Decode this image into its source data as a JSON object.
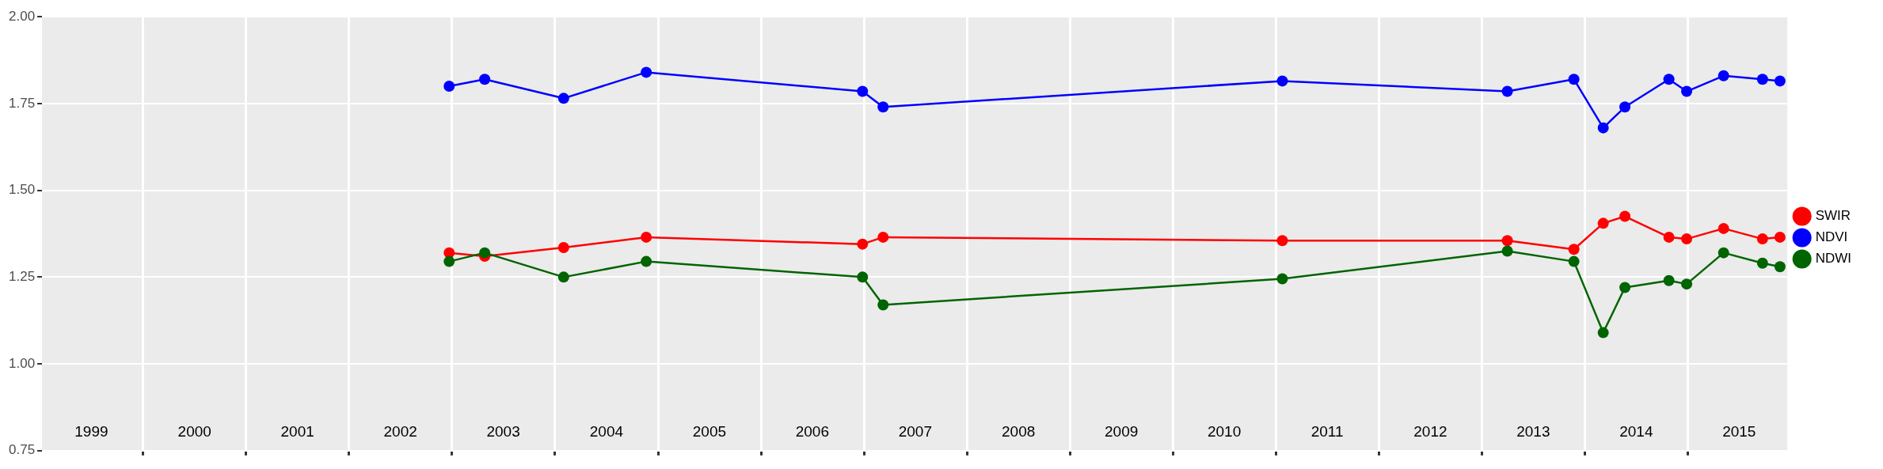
{
  "chart_data": {
    "type": "line",
    "marker": "circle",
    "line_style": "solid",
    "legend": "right",
    "grid": true,
    "x": [
      "2002-12-22",
      "2003-04-27",
      "2004-02-01",
      "2004-11-20",
      "2006-12-27",
      "2007-03-10",
      "2011-01-24",
      "2013-04-01",
      "2013-11-23",
      "2014-03-07",
      "2014-05-23",
      "2014-10-26",
      "2014-12-28",
      "2015-05-08",
      "2015-09-23",
      "2015-11-24"
    ],
    "series": [
      {
        "name": "SWIR",
        "color": "#ff0000",
        "values": [
          1.32,
          1.31,
          1.335,
          1.365,
          1.345,
          1.365,
          1.355,
          1.355,
          1.33,
          1.405,
          1.425,
          1.365,
          1.36,
          1.39,
          1.36,
          1.365
        ]
      },
      {
        "name": "NDVI",
        "color": "#0000ff",
        "values": [
          1.8,
          1.82,
          1.765,
          1.84,
          1.785,
          1.74,
          1.815,
          1.785,
          1.82,
          1.68,
          1.74,
          1.82,
          1.785,
          1.83,
          1.82,
          1.815
        ]
      },
      {
        "name": "NDWI",
        "color": "#006400",
        "values": [
          1.295,
          1.32,
          1.25,
          1.295,
          1.25,
          1.17,
          1.245,
          1.325,
          1.295,
          1.09,
          1.22,
          1.24,
          1.23,
          1.32,
          1.29,
          1.28
        ]
      }
    ],
    "xlim": [
      "1999-01-08",
      "2015-12-20"
    ],
    "xticks": [
      {
        "value": "2000-01-01",
        "label": null
      },
      {
        "value": "2001-01-01",
        "label": null
      },
      {
        "value": "2002-01-01",
        "label": null
      },
      {
        "value": "2003-01-01",
        "label": null
      },
      {
        "value": "2004-01-01",
        "label": null
      },
      {
        "value": "2005-01-01",
        "label": null
      },
      {
        "value": "2006-01-01",
        "label": null
      },
      {
        "value": "2007-01-01",
        "label": null
      },
      {
        "value": "2008-01-01",
        "label": null
      },
      {
        "value": "2009-01-01",
        "label": null
      },
      {
        "value": "2010-01-01",
        "label": null
      },
      {
        "value": "2011-01-01",
        "label": null
      },
      {
        "value": "2012-01-01",
        "label": null
      },
      {
        "value": "2013-01-01",
        "label": null
      },
      {
        "value": "2014-01-01",
        "label": null
      },
      {
        "value": "2015-01-01",
        "label": null
      },
      {
        "value": "1999-07-02",
        "label": "1999"
      },
      {
        "value": "2000-07-02",
        "label": "2000"
      },
      {
        "value": "2001-07-02",
        "label": "2001"
      },
      {
        "value": "2002-07-02",
        "label": "2002"
      },
      {
        "value": "2003-07-02",
        "label": "2003"
      },
      {
        "value": "2004-07-02",
        "label": "2004"
      },
      {
        "value": "2005-07-02",
        "label": "2005"
      },
      {
        "value": "2006-07-02",
        "label": "2006"
      },
      {
        "value": "2007-07-02",
        "label": "2007"
      },
      {
        "value": "2008-07-02",
        "label": "2008"
      },
      {
        "value": "2009-07-02",
        "label": "2009"
      },
      {
        "value": "2010-07-02",
        "label": "2010"
      },
      {
        "value": "2011-07-02",
        "label": "2011"
      },
      {
        "value": "2012-07-02",
        "label": "2012"
      },
      {
        "value": "2013-07-02",
        "label": "2013"
      },
      {
        "value": "2014-07-02",
        "label": "2014"
      },
      {
        "value": "2015-07-02",
        "label": "2015"
      }
    ],
    "ylim": [
      0.75,
      2
    ],
    "yticks": [
      {
        "value": 0.75,
        "label": "0.75"
      },
      {
        "value": 1,
        "label": "1.00"
      },
      {
        "value": 1.25,
        "label": "1.25"
      },
      {
        "value": 1.5,
        "label": "1.50"
      },
      {
        "value": 1.75,
        "label": "1.75"
      },
      {
        "value": 2,
        "label": "2.00"
      }
    ]
  }
}
